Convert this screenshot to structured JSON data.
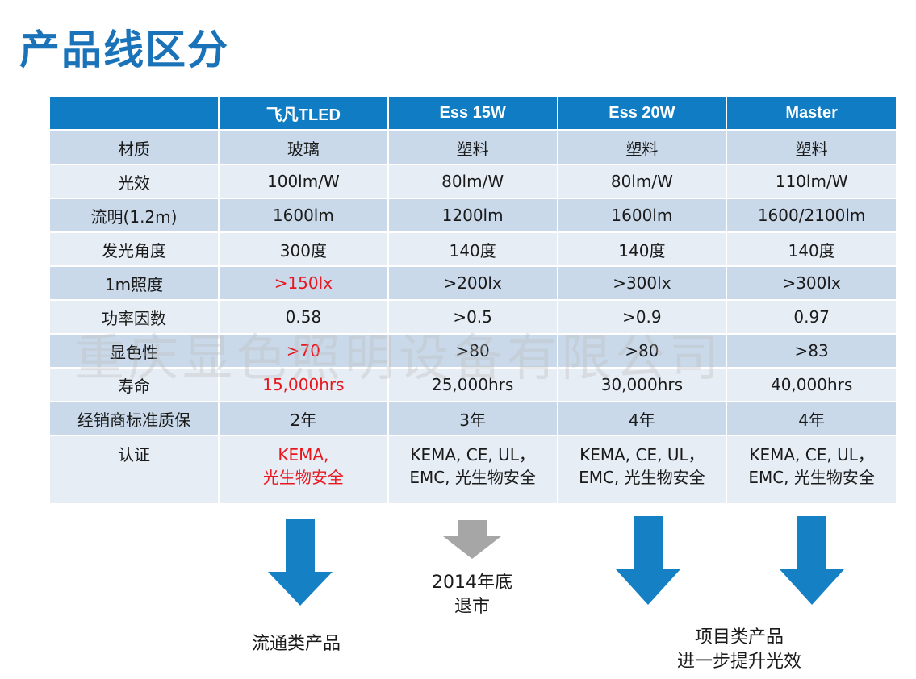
{
  "title": "产品线区分",
  "table": {
    "headers": [
      "",
      "飞凡TLED",
      "Ess 15W",
      "Ess 20W",
      "Master"
    ],
    "rows": [
      {
        "label": "材质",
        "cells": [
          "玻璃",
          "塑料",
          "塑料",
          "塑料"
        ]
      },
      {
        "label": "光效",
        "cells": [
          "100lm/W",
          "80lm/W",
          "80lm/W",
          "110lm/W"
        ]
      },
      {
        "label": "流明(1.2m)",
        "cells": [
          "1600lm",
          "1200lm",
          "1600lm",
          "1600/2100lm"
        ]
      },
      {
        "label": "发光角度",
        "cells": [
          "300度",
          "140度",
          "140度",
          "140度"
        ]
      },
      {
        "label": "1m照度",
        "cells": [
          ">150lx",
          ">200lx",
          ">300lx",
          ">300lx"
        ]
      },
      {
        "label": "功率因数",
        "cells": [
          "0.58",
          ">0.5",
          ">0.9",
          "0.97"
        ]
      },
      {
        "label": "显色性",
        "cells": [
          ">70",
          ">80",
          ">80",
          ">83"
        ]
      },
      {
        "label": "寿命",
        "cells": [
          "15,000hrs",
          "25,000hrs",
          "30,000hrs",
          "40,000hrs"
        ]
      },
      {
        "label": "经销商标准质保",
        "cells": [
          "2年",
          "3年",
          "4年",
          "4年"
        ]
      }
    ],
    "cert": {
      "label": "认证",
      "cells": [
        [
          "KEMA,",
          "光生物安全"
        ],
        [
          "KEMA, CE, UL，",
          "EMC, 光生物安全"
        ],
        [
          "KEMA, CE, UL，",
          "EMC, 光生物安全"
        ],
        [
          "KEMA, CE, UL，",
          "EMC, 光生物安全"
        ]
      ]
    }
  },
  "watermark": "重庆显色照明设备有限公司",
  "captions": {
    "general": "流通类产品",
    "retire_line1": "2014年底",
    "retire_line2": "退市",
    "project_line1": "项目类产品",
    "project_line2": "进一步提升光效"
  },
  "colors": {
    "header_blue": "#0f7cc4",
    "title_blue": "#1a73b8",
    "row_dark": "#c9d9ea",
    "row_light": "#e6edf5",
    "highlight_red": "#e8171f",
    "arrow_blue": "#1680c4",
    "arrow_gray": "#a6a6a6"
  },
  "arrows": [
    {
      "name": "arrow-down-icon",
      "color": "blue"
    },
    {
      "name": "arrow-down-icon",
      "color": "gray"
    },
    {
      "name": "arrow-down-icon",
      "color": "blue"
    },
    {
      "name": "arrow-down-icon",
      "color": "blue"
    }
  ]
}
